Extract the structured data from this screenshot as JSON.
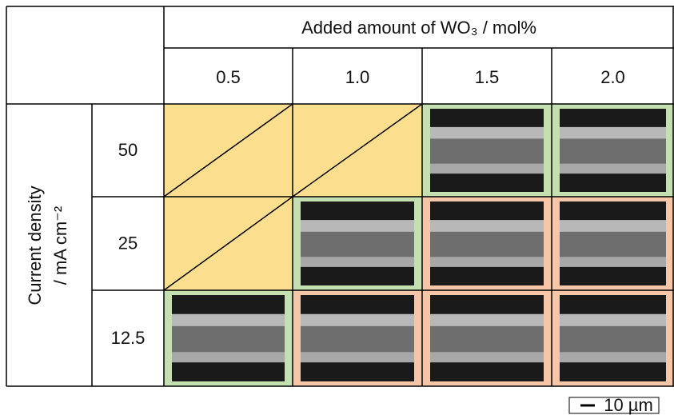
{
  "header": {
    "title": "Added amount of WO₃ / mol%",
    "columns": [
      "0.5",
      "1.0",
      "1.5",
      "2.0"
    ]
  },
  "row_header": {
    "lines": [
      "Current density",
      "/ mA cm⁻²"
    ]
  },
  "rows": [
    {
      "label": "50",
      "cells": [
        {
          "color": "#fbdf8f",
          "image": false
        },
        {
          "color": "#fbdf8f",
          "image": false
        },
        {
          "color": "#c4dfb0",
          "image": true
        },
        {
          "color": "#c4dfb0",
          "image": true
        }
      ]
    },
    {
      "label": "25",
      "cells": [
        {
          "color": "#fbdf8f",
          "image": false
        },
        {
          "color": "#c4dfb0",
          "image": true
        },
        {
          "color": "#f5c6a8",
          "image": true
        },
        {
          "color": "#f5c6a8",
          "image": true
        }
      ]
    },
    {
      "label": "12.5",
      "cells": [
        {
          "color": "#c4dfb0",
          "image": true
        },
        {
          "color": "#f5c6a8",
          "image": true
        },
        {
          "color": "#f5c6a8",
          "image": true
        },
        {
          "color": "#f5c6a8",
          "image": true
        }
      ]
    }
  ],
  "scale_bar": "10 µm"
}
